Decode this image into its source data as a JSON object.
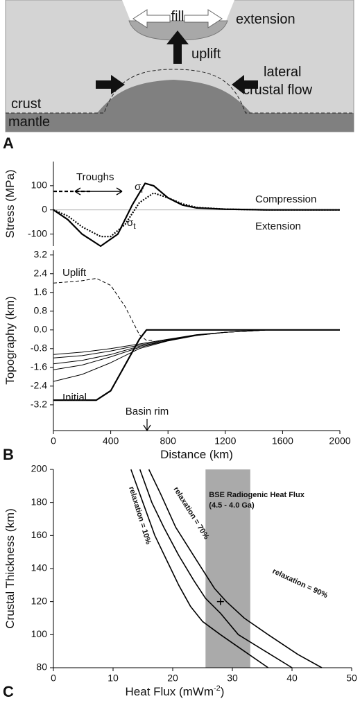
{
  "diagram": {
    "panel": "A",
    "labels": {
      "fill": "fill",
      "extension": "extension",
      "uplift": "uplift",
      "lateral": "lateral",
      "crustal_flow": "crustal flow",
      "crust": "crust",
      "mantle": "mantle"
    }
  },
  "chart_data": [
    {
      "type": "line",
      "panel": "B",
      "xlim": [
        0,
        2000
      ],
      "ylim": [
        -150,
        200
      ],
      "yticks": [
        -100,
        0,
        100
      ],
      "y_label": "Stress (MPa)",
      "series": [
        {
          "x": [
            0,
            100,
            200,
            330,
            450,
            550,
            640,
            700,
            800,
            900,
            1000,
            1200,
            1500,
            2000
          ],
          "values": [
            0,
            -40,
            -100,
            -150,
            -100,
            20,
            110,
            100,
            50,
            20,
            8,
            3,
            0,
            0
          ],
          "color": "#000000",
          "style": "thick"
        },
        {
          "x": [
            0,
            100,
            200,
            330,
            400,
            500,
            600,
            700,
            800,
            900,
            1000,
            1200,
            1500,
            2000
          ],
          "values": [
            0,
            -25,
            -70,
            -110,
            -110,
            -60,
            30,
            70,
            50,
            25,
            10,
            3,
            0,
            0
          ],
          "color": "#000000",
          "style": "dotted"
        }
      ],
      "annotations": {
        "troughs": "Troughs",
        "compression": "Compression",
        "extension": "Extension",
        "sigma_r": {
          "symbol": "σ",
          "subscript": "r"
        },
        "sigma_t": {
          "symbol": "σ",
          "subscript": "t"
        }
      }
    },
    {
      "type": "line",
      "xlim": [
        0,
        2000
      ],
      "ylim": [
        -4.3,
        3.4
      ],
      "xticks": [
        0,
        400,
        800,
        1200,
        1600,
        2000
      ],
      "yticks": [
        3.2,
        2.4,
        1.6,
        0.8,
        {
          "value": 0,
          "label": "0.0"
        },
        -0.8,
        -1.6,
        -2.4,
        -3.2
      ],
      "x_label": "Distance (km)",
      "y_label": "Topography (km)",
      "series": [
        {
          "x": [
            0,
            200,
            400,
            600,
            800,
            1000,
            1200,
            1500,
            2000
          ],
          "values": [
            -1.05,
            -0.95,
            -0.8,
            -0.6,
            -0.4,
            -0.2,
            -0.1,
            0,
            0
          ],
          "color": "#000000",
          "style": "thin"
        },
        {
          "x": [
            0,
            200,
            400,
            600,
            800,
            1000,
            1200,
            1500,
            2000
          ],
          "values": [
            -1.2,
            -1.1,
            -0.9,
            -0.65,
            -0.42,
            -0.22,
            -0.1,
            0,
            0
          ],
          "color": "#000000",
          "style": "thin"
        },
        {
          "x": [
            0,
            200,
            400,
            600,
            800,
            1000,
            1200,
            1500,
            2000
          ],
          "values": [
            -1.45,
            -1.3,
            -1.05,
            -0.7,
            -0.45,
            -0.23,
            -0.1,
            0,
            0
          ],
          "color": "#000000",
          "style": "thin"
        },
        {
          "x": [
            0,
            200,
            400,
            600,
            800,
            1000,
            1200,
            1500,
            2000
          ],
          "values": [
            -1.7,
            -1.5,
            -1.15,
            -0.75,
            -0.45,
            -0.23,
            -0.1,
            0,
            0
          ],
          "color": "#000000",
          "style": "thin"
        },
        {
          "x": [
            0,
            200,
            400,
            600,
            800,
            1000,
            1200,
            1500,
            2000
          ],
          "values": [
            -2.2,
            -1.9,
            -1.4,
            -0.8,
            -0.47,
            -0.24,
            -0.1,
            0,
            0
          ],
          "color": "#000000",
          "style": "thin"
        },
        {
          "x": [
            0,
            300,
            400,
            500,
            600,
            650,
            700,
            2000
          ],
          "values": [
            -3.0,
            -3.0,
            -2.6,
            -1.5,
            -0.4,
            0,
            0,
            0
          ],
          "color": "#000000",
          "style": "thick"
        },
        {
          "x": [
            0,
            200,
            300,
            400,
            500,
            600,
            650,
            700
          ],
          "values": [
            2.0,
            2.1,
            2.2,
            1.9,
            1.0,
            -0.2,
            -0.45,
            -0.45
          ],
          "color": "#000000",
          "style": "dashed"
        }
      ],
      "annotations": {
        "uplift": "Uplift",
        "initial": "Initial",
        "basin_rim": "Basin rim"
      }
    },
    {
      "type": "line",
      "panel": "C",
      "xlim": [
        0,
        50
      ],
      "ylim": [
        80,
        200
      ],
      "xticks": [
        0,
        10,
        20,
        30,
        40,
        50
      ],
      "yticks": [
        80,
        100,
        120,
        140,
        160,
        180,
        200
      ],
      "x_label": {
        "text": "Heat Flux (mWm",
        "superscript": "-2",
        "suffix": ")"
      },
      "y_label": "Crustal Thickness (km)",
      "shaded_region": {
        "xlim": [
          25.5,
          33
        ],
        "color": "#aaaaaa",
        "label": "BSE Radiogenic Heat Flux",
        "sublabel": "(4.5 - 4.0 Ga)"
      },
      "marker": {
        "x": 28,
        "y": 120
      },
      "series": [
        {
          "name": "relaxation = 10%",
          "x": [
            13,
            15,
            17,
            19,
            21,
            23,
            25,
            28,
            32,
            36
          ],
          "values": [
            200,
            180,
            160,
            145,
            130,
            117,
            108,
            100,
            90,
            80
          ],
          "color": "#000000",
          "style": "medium"
        },
        {
          "name": "relaxation = 70%",
          "x": [
            14.5,
            16.5,
            18.5,
            21,
            23.5,
            25.5,
            28,
            31,
            35.5,
            40
          ],
          "values": [
            200,
            180,
            165,
            148,
            133,
            122,
            113,
            100,
            90,
            80
          ],
          "color": "#000000",
          "style": "medium"
        },
        {
          "name": "relaxation = 90%",
          "x": [
            16,
            18,
            20.5,
            24,
            27,
            29,
            32,
            36,
            41,
            45
          ],
          "values": [
            200,
            185,
            165,
            145,
            128,
            120,
            110,
            100,
            88,
            80
          ],
          "color": "#000000",
          "style": "medium"
        }
      ]
    }
  ]
}
